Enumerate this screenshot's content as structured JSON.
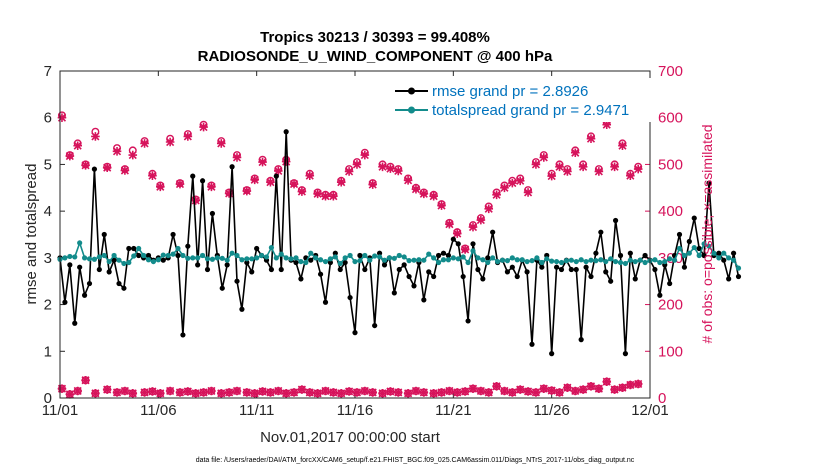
{
  "chart_data": {
    "type": "line",
    "title_line1": "Tropics 30213 / 30393 = 99.408%",
    "title_line2": "RADIOSONDE_U_WIND_COMPONENT @ 400 hPa",
    "xlabel": "Nov.01,2017 00:00:00 start",
    "ylabel_left": "rmse and totalspread",
    "ylabel_right": "# of obs: o=possible; ×=assimilated",
    "footnote": "data file: /Users/raeder/DAI/ATM_forcXX/CAM6_setup/f.e21.FHIST_BGC.f09_025.CAM6assim.011/Diags_NTrS_2017-11/obs_diag_output.nc",
    "xlim": [
      0,
      30
    ],
    "ylim_left": [
      0,
      7
    ],
    "ylim_right": [
      0,
      700
    ],
    "x_ticks": [
      0,
      5,
      10,
      15,
      20,
      25,
      30
    ],
    "x_tick_labels": [
      "11/01",
      "11/06",
      "11/11",
      "11/16",
      "11/21",
      "11/26",
      "12/01"
    ],
    "y_ticks_left": [
      0,
      1,
      2,
      3,
      4,
      5,
      6,
      7
    ],
    "y_tick_labels_left": [
      "0",
      "1",
      "2",
      "3",
      "4",
      "5",
      "6",
      "7"
    ],
    "y_ticks_right": [
      0,
      100,
      200,
      300,
      400,
      500,
      600,
      700
    ],
    "y_tick_labels_right": [
      "0",
      "100",
      "200",
      "300",
      "400",
      "500",
      "600",
      "700"
    ],
    "series": [
      {
        "name": "rmse grand pr = 2.8926",
        "color": "#000000",
        "values": [
          3.0,
          2.05,
          2.85,
          1.6,
          2.8,
          2.2,
          2.45,
          4.9,
          2.75,
          3.5,
          2.7,
          2.95,
          2.45,
          2.35,
          3.2,
          3.2,
          3.05,
          3.0,
          3.05,
          2.95,
          3.0,
          2.95,
          3.0,
          3.5,
          3.05,
          1.35,
          3.25,
          4.75,
          2.85,
          4.65,
          2.75,
          3.95,
          3.05,
          2.35,
          2.85,
          4.95,
          2.5,
          1.9,
          2.9,
          2.7,
          3.2,
          3.05,
          2.95,
          2.75,
          4.75,
          2.75,
          5.7,
          2.95,
          2.9,
          2.55,
          3.0,
          2.95,
          3.05,
          2.65,
          2.05,
          2.9,
          3.1,
          2.75,
          2.9,
          2.15,
          1.4,
          3.05,
          2.75,
          3.0,
          1.55,
          3.1,
          2.85,
          3.0,
          2.25,
          2.75,
          2.85,
          2.6,
          2.4,
          2.9,
          2.1,
          2.7,
          2.6,
          3.05,
          3.1,
          3.05,
          3.4,
          3.3,
          2.6,
          1.65,
          3.3,
          2.75,
          2.55,
          3.0,
          3.55,
          2.9,
          2.95,
          2.7,
          2.8,
          2.6,
          2.95,
          2.7,
          1.15,
          2.95,
          2.8,
          3.05,
          0.95,
          2.8,
          2.75,
          2.95,
          2.75,
          2.75,
          1.25,
          2.8,
          2.6,
          3.1,
          3.55,
          2.7,
          2.5,
          3.8,
          3.05,
          0.95,
          3.1,
          2.55,
          2.95,
          3.05,
          2.95,
          2.75,
          2.2,
          2.85,
          2.45,
          3.05,
          3.5,
          2.8,
          3.35,
          3.85,
          3.2,
          3.05,
          4.6,
          3.05,
          3.1,
          2.95,
          2.55,
          3.1,
          2.6
        ],
        "x_start": 0,
        "x_step": 0.25
      },
      {
        "name": "totalspread grand pr = 2.9471",
        "color": "#138c8c",
        "values": [
          2.97,
          3.0,
          3.03,
          3.02,
          3.32,
          3.0,
          2.98,
          2.97,
          3.02,
          3.05,
          2.92,
          3.05,
          2.95,
          2.88,
          2.9,
          3.04,
          3.2,
          3.05,
          2.96,
          2.92,
          2.96,
          3.06,
          3.05,
          3.08,
          3.2,
          3.05,
          2.99,
          3.0,
          3.0,
          3.05,
          2.98,
          2.97,
          3.0,
          2.99,
          2.95,
          3.1,
          3.05,
          2.96,
          2.98,
          2.98,
          3.0,
          3.05,
          3.02,
          3.22,
          3.0,
          3.08,
          3.0,
          2.98,
          3.0,
          2.92,
          2.9,
          3.1,
          3.0,
          2.96,
          2.92,
          2.98,
          3.02,
          2.88,
          3.0,
          3.05,
          2.92,
          2.94,
          3.05,
          2.95,
          3.04,
          3.02,
          2.95,
          3.0,
          2.99,
          3.05,
          3.02,
          2.94,
          2.95,
          2.96,
          2.95,
          3.08,
          3.0,
          2.9,
          2.96,
          2.96,
          3.0,
          2.98,
          3.02,
          2.9,
          3.15,
          3.0,
          2.96,
          2.9,
          3.0,
          2.92,
          2.95,
          2.94,
          3.0,
          2.96,
          2.96,
          2.92,
          2.94,
          3.0,
          2.9,
          2.98,
          2.93,
          2.92,
          2.9,
          2.94,
          2.95,
          2.92,
          2.96,
          2.92,
          2.95,
          2.94,
          2.96,
          2.92,
          2.98,
          2.92,
          2.9,
          2.88,
          2.95,
          2.92,
          2.95,
          2.9,
          2.94,
          2.96,
          2.9,
          2.92,
          2.98,
          2.95,
          3.2,
          3.05,
          3.1,
          3.22,
          3.05,
          3.3,
          3.25,
          3.1,
          3.0,
          3.1,
          3.0,
          2.95,
          2.78
        ],
        "x_start": 0,
        "x_step": 0.25
      }
    ],
    "obs_possible": [
      605,
      520,
      545,
      500,
      570,
      495,
      535,
      490,
      530,
      550,
      480,
      455,
      555,
      460,
      565,
      425,
      585,
      455,
      550,
      440,
      520,
      445,
      470,
      510,
      465,
      490,
      510,
      460,
      445,
      480,
      440,
      435,
      435,
      465,
      490,
      505,
      525,
      460,
      500,
      495,
      490,
      470,
      450,
      440,
      435,
      415,
      375,
      355,
      320,
      370,
      385,
      410,
      440,
      455,
      465,
      470,
      445,
      505,
      520,
      480,
      500,
      490,
      530,
      500,
      560,
      490,
      590,
      500,
      545,
      480,
      495
    ],
    "obs_assimilated": [
      600,
      518,
      540,
      498,
      560,
      493,
      528,
      487,
      520,
      545,
      476,
      452,
      548,
      458,
      560,
      423,
      580,
      452,
      545,
      438,
      515,
      443,
      467,
      505,
      462,
      486,
      506,
      458,
      442,
      476,
      437,
      432,
      432,
      462,
      485,
      500,
      520,
      457,
      495,
      491,
      486,
      466,
      447,
      437,
      432,
      412,
      372,
      352,
      318,
      366,
      381,
      405,
      435,
      450,
      460,
      465,
      440,
      500,
      515,
      475,
      495,
      485,
      525,
      495,
      555,
      485,
      585,
      495,
      540,
      476,
      490
    ],
    "obs_x": [
      0.1,
      0.5,
      0.9,
      1.3,
      1.8,
      2.4,
      2.9,
      3.3,
      3.7,
      4.3,
      4.7,
      5.1,
      5.6,
      6.1,
      6.5,
      6.9,
      7.3,
      7.7,
      8.2,
      8.6,
      9.0,
      9.5,
      9.9,
      10.3,
      10.7,
      11.1,
      11.5,
      11.9,
      12.3,
      12.7,
      13.1,
      13.5,
      13.9,
      14.3,
      14.7,
      15.1,
      15.5,
      15.9,
      16.4,
      16.8,
      17.2,
      17.7,
      18.1,
      18.5,
      19.0,
      19.4,
      19.8,
      20.2,
      20.6,
      21.0,
      21.4,
      21.8,
      22.2,
      22.6,
      23.0,
      23.4,
      23.8,
      24.2,
      24.6,
      25.0,
      25.4,
      25.8,
      26.2,
      26.6,
      27.0,
      27.4,
      27.8,
      28.2,
      28.6,
      29.0,
      29.4
    ],
    "obs_low_y": [
      20,
      8,
      15,
      38,
      10,
      18,
      12,
      15,
      10,
      12,
      14,
      10,
      15,
      12,
      14,
      10,
      12,
      15,
      10,
      12,
      15,
      12,
      10,
      14,
      12,
      15,
      10,
      12,
      18,
      12,
      10,
      15,
      12,
      10,
      14,
      12,
      15,
      12,
      10,
      14,
      12,
      10,
      15,
      12,
      10,
      12,
      15,
      12,
      14,
      20,
      15,
      12,
      25,
      15,
      12,
      18,
      14,
      12,
      20,
      16,
      12,
      22,
      15,
      18,
      25,
      20,
      35,
      18,
      22,
      28,
      30
    ],
    "legend": {
      "rmse_label": "rmse grand pr = 2.8926",
      "spread_label": "totalspread grand pr = 2.9471"
    }
  }
}
